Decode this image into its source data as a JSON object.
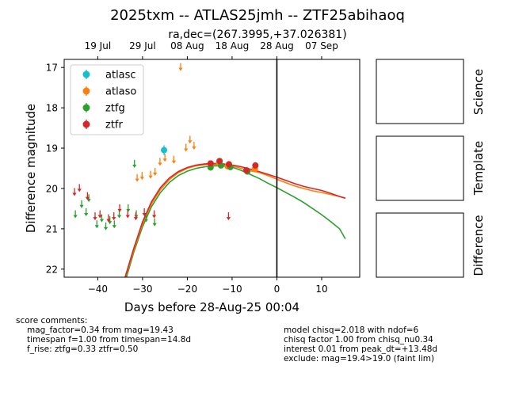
{
  "figure": {
    "title": "2025txm -- ATLAS25jmh -- ZTF25abihaoq",
    "subtitle": "ra,dec=(267.3995,+37.026381)"
  },
  "panels": {
    "science": "Science",
    "template": "Template",
    "difference": "Difference"
  },
  "comments": {
    "header": "score comments:",
    "left": [
      "mag_factor=0.34 from mag=19.43",
      "timespan f=1.00 from timespan=14.8d",
      "f_rise: ztfg=0.33 ztfr=0.50"
    ],
    "right": [
      "model chisq=2.018 with ndof=6",
      "chisq factor 1.00 from chisq_nu0.34",
      "interest 0.01 from peak_dt=+13.48d",
      "exclude: mag=19.4>19.0 (faint lim)"
    ]
  },
  "colors": {
    "atlasc": "#17becf",
    "atlaso": "#ff7f0e",
    "ztfg": "#2ca02c",
    "ztfr": "#d62728"
  },
  "chart_data": {
    "type": "scatter",
    "xlabel": "Days before 28-Aug-25 00:04",
    "ylabel": "Difference magnitude",
    "xlim": [
      -47.5,
      18.5
    ],
    "ylim": [
      22.2,
      16.8
    ],
    "y_inverted": true,
    "x_ticks": [
      -40,
      -30,
      -20,
      -10,
      0,
      10
    ],
    "y_ticks": [
      17,
      18,
      19,
      20,
      21,
      22
    ],
    "top_axis": {
      "ticks": [
        {
          "x": -40,
          "label": "19 Jul"
        },
        {
          "x": -30,
          "label": "29 Jul"
        },
        {
          "x": -20,
          "label": "08 Aug"
        },
        {
          "x": -10,
          "label": "18 Aug"
        },
        {
          "x": 0,
          "label": "28 Aug"
        },
        {
          "x": 10,
          "label": "07 Sep"
        }
      ]
    },
    "vline_x": 0,
    "legend_position": "upper-left",
    "series": [
      {
        "name": "atlasc",
        "color": "#17becf",
        "points": [
          [
            -25.2,
            19.05,
            0.12
          ]
        ],
        "upper_limits": []
      },
      {
        "name": "atlaso",
        "color": "#ff7f0e",
        "points": [
          [
            -12.9,
            19.38,
            0.06
          ],
          [
            -11.0,
            19.45,
            0.06
          ],
          [
            -4.9,
            19.52,
            0.08
          ]
        ],
        "upper_limits": [
          [
            -31.2,
            19.7
          ],
          [
            -30.1,
            19.65
          ],
          [
            -28.2,
            19.62
          ],
          [
            -27.2,
            19.55
          ],
          [
            -26.1,
            19.3
          ],
          [
            -25.0,
            19.2
          ],
          [
            -23.0,
            19.25
          ],
          [
            -21.5,
            16.95
          ],
          [
            -20.3,
            18.95
          ],
          [
            -19.4,
            18.75
          ],
          [
            -18.5,
            18.9
          ],
          [
            -14.8,
            19.4
          ]
        ]
      },
      {
        "name": "ztfg",
        "color": "#2ca02c",
        "points": [
          [
            -14.8,
            19.48,
            0.05
          ],
          [
            -12.5,
            19.43,
            0.05
          ],
          [
            -10.4,
            19.47,
            0.05
          ],
          [
            -6.6,
            19.58,
            0.06
          ]
        ],
        "upper_limits": [
          [
            -45.0,
            20.6
          ],
          [
            -43.6,
            20.35
          ],
          [
            -42.6,
            20.55
          ],
          [
            -42.0,
            20.2
          ],
          [
            -40.2,
            20.85
          ],
          [
            -39.1,
            20.7
          ],
          [
            -38.2,
            20.9
          ],
          [
            -37.3,
            20.75
          ],
          [
            -36.3,
            20.85
          ],
          [
            -35.2,
            20.6
          ],
          [
            -33.2,
            20.45
          ],
          [
            -31.8,
            19.35
          ],
          [
            -31.4,
            20.6
          ],
          [
            -29.2,
            20.7
          ],
          [
            -27.3,
            20.8
          ]
        ]
      },
      {
        "name": "ztfr",
        "color": "#d62728",
        "points": [
          [
            -14.8,
            19.38,
            0.05
          ],
          [
            -12.8,
            19.32,
            0.05
          ],
          [
            -10.7,
            19.4,
            0.05
          ],
          [
            -6.8,
            19.55,
            0.06
          ],
          [
            -4.8,
            19.43,
            0.06
          ]
        ],
        "upper_limits": [
          [
            -45.2,
            20.05
          ],
          [
            -44.1,
            19.95
          ],
          [
            -42.3,
            20.15
          ],
          [
            -40.6,
            20.65
          ],
          [
            -39.5,
            20.6
          ],
          [
            -37.6,
            20.7
          ],
          [
            -36.4,
            20.65
          ],
          [
            -35.1,
            20.45
          ],
          [
            -33.3,
            20.6
          ],
          [
            -31.5,
            20.65
          ],
          [
            -29.6,
            20.55
          ],
          [
            -27.4,
            20.6
          ],
          [
            -10.8,
            20.65
          ]
        ]
      }
    ],
    "model_curves": [
      {
        "band": "ztfg",
        "color": "#2ca02c",
        "points": [
          [
            -33.6,
            22.2
          ],
          [
            -32,
            21.6
          ],
          [
            -30,
            20.95
          ],
          [
            -28,
            20.45
          ],
          [
            -26,
            20.1
          ],
          [
            -24,
            19.85
          ],
          [
            -22,
            19.68
          ],
          [
            -20,
            19.57
          ],
          [
            -18,
            19.5
          ],
          [
            -16,
            19.46
          ],
          [
            -14,
            19.44
          ],
          [
            -12,
            19.44
          ],
          [
            -10,
            19.47
          ],
          [
            -8,
            19.55
          ],
          [
            -6,
            19.65
          ],
          [
            -4,
            19.75
          ],
          [
            -2,
            19.87
          ],
          [
            0,
            19.98
          ],
          [
            2,
            20.1
          ],
          [
            4,
            20.22
          ],
          [
            6,
            20.35
          ],
          [
            8,
            20.5
          ],
          [
            10,
            20.65
          ],
          [
            12,
            20.82
          ],
          [
            14,
            21.0
          ],
          [
            15.3,
            21.25
          ]
        ]
      },
      {
        "band": "atlaso",
        "color": "#ff7f0e",
        "points": [
          [
            -33.8,
            22.2
          ],
          [
            -32,
            21.55
          ],
          [
            -30,
            20.88
          ],
          [
            -28,
            20.38
          ],
          [
            -26,
            20.03
          ],
          [
            -24,
            19.78
          ],
          [
            -22,
            19.61
          ],
          [
            -20,
            19.5
          ],
          [
            -18,
            19.44
          ],
          [
            -16,
            19.41
          ],
          [
            -14,
            19.4
          ],
          [
            -12,
            19.41
          ],
          [
            -10,
            19.44
          ],
          [
            -8,
            19.5
          ],
          [
            -6,
            19.56
          ],
          [
            -4,
            19.6
          ],
          [
            -2,
            19.68
          ],
          [
            0,
            19.77
          ],
          [
            2,
            19.86
          ],
          [
            4,
            19.94
          ],
          [
            6,
            20.0
          ],
          [
            8,
            20.06
          ],
          [
            10,
            20.1
          ],
          [
            12,
            20.15
          ],
          [
            14,
            20.2
          ],
          [
            15.3,
            20.24
          ]
        ]
      },
      {
        "band": "ztfr",
        "color": "#d62728",
        "points": [
          [
            -33.9,
            22.2
          ],
          [
            -32,
            21.5
          ],
          [
            -30,
            20.83
          ],
          [
            -28,
            20.33
          ],
          [
            -26,
            19.98
          ],
          [
            -24,
            19.74
          ],
          [
            -22,
            19.58
          ],
          [
            -20,
            19.48
          ],
          [
            -18,
            19.42
          ],
          [
            -16,
            19.39
          ],
          [
            -14,
            19.38
          ],
          [
            -12,
            19.39
          ],
          [
            -10,
            19.42
          ],
          [
            -8,
            19.46
          ],
          [
            -6,
            19.52
          ],
          [
            -4,
            19.58
          ],
          [
            -2,
            19.65
          ],
          [
            0,
            19.72
          ],
          [
            2,
            19.8
          ],
          [
            4,
            19.88
          ],
          [
            6,
            19.95
          ],
          [
            8,
            20.0
          ],
          [
            10,
            20.05
          ],
          [
            12,
            20.12
          ],
          [
            14,
            20.2
          ],
          [
            15.3,
            20.24
          ]
        ]
      }
    ]
  }
}
